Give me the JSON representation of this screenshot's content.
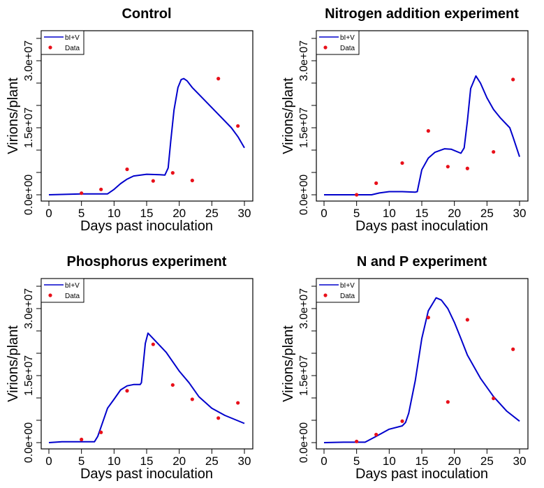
{
  "chart_data": [
    {
      "type": "line",
      "title": "Control",
      "xlabel": "Days past inoculation",
      "ylabel": "Virions/plant",
      "xlim": [
        0,
        30
      ],
      "ylim": [
        0,
        35000000
      ],
      "xticks": [
        0,
        5,
        10,
        15,
        20,
        25,
        30
      ],
      "yticks": [
        0,
        5000000,
        10000000,
        15000000,
        20000000,
        25000000,
        30000000,
        35000000
      ],
      "ytick_labels": [
        {
          "value": 0,
          "label": "0.0e+00"
        },
        {
          "value": 15000000,
          "label": "1.5e+07"
        },
        {
          "value": 30000000,
          "label": "3.0e+07"
        }
      ],
      "legend": {
        "position": "top-left",
        "entries": [
          "bI+V",
          "Data"
        ]
      },
      "series": [
        {
          "name": "bI+V",
          "kind": "line",
          "color": "#0000cc",
          "x": [
            0,
            5,
            9,
            10,
            11,
            12,
            13,
            15,
            17,
            17.8,
            18.3,
            18.7,
            19.2,
            19.8,
            20.3,
            20.7,
            21.2,
            22,
            24,
            26,
            28,
            29,
            30
          ],
          "y": [
            0,
            200000,
            200000,
            1200000,
            2500000,
            3500000,
            4200000,
            4600000,
            4500000,
            4400000,
            6000000,
            12000000,
            19000000,
            24000000,
            25800000,
            26000000,
            25500000,
            24000000,
            21000000,
            18000000,
            15000000,
            13000000,
            10500000
          ]
        },
        {
          "name": "Data",
          "kind": "points",
          "color": "#e8101a",
          "x": [
            5,
            8,
            12,
            16,
            19,
            22,
            26,
            29
          ],
          "y": [
            360000,
            1200000,
            5700000,
            3100000,
            4900000,
            3200000,
            26000000,
            15400000
          ]
        }
      ]
    },
    {
      "type": "line",
      "title": "Nitrogen addition experiment",
      "xlabel": "Days past inoculation",
      "ylabel": "Virions/plant",
      "xlim": [
        0,
        30
      ],
      "ylim": [
        0,
        35000000
      ],
      "xticks": [
        0,
        5,
        10,
        15,
        20,
        25,
        30
      ],
      "yticks": [
        0,
        5000000,
        10000000,
        15000000,
        20000000,
        25000000,
        30000000,
        35000000
      ],
      "ytick_labels": [
        {
          "value": 0,
          "label": "0.0e+00"
        },
        {
          "value": 15000000,
          "label": "1.5e+07"
        },
        {
          "value": 30000000,
          "label": "3.0e+07"
        }
      ],
      "legend": {
        "position": "top-left",
        "entries": [
          "bI+V",
          "Data"
        ]
      },
      "series": [
        {
          "name": "bI+V",
          "kind": "line",
          "color": "#0000cc",
          "x": [
            0,
            5,
            7.3,
            8.5,
            10,
            12,
            14,
            14.3,
            15,
            16,
            17,
            18.5,
            19.5,
            21,
            21.5,
            22,
            22.5,
            23.3,
            24,
            25,
            26,
            27,
            28.5,
            29,
            30
          ],
          "y": [
            0,
            0,
            0,
            400000,
            700000,
            700000,
            600000,
            700000,
            5600000,
            8200000,
            9500000,
            10300000,
            10200000,
            9300000,
            10500000,
            16500000,
            23800000,
            26600000,
            25000000,
            21700000,
            19100000,
            17300000,
            15000000,
            12900000,
            8500000
          ]
        },
        {
          "name": "Data",
          "kind": "points",
          "color": "#e8101a",
          "x": [
            5,
            8,
            12,
            16,
            19,
            22,
            26,
            29
          ],
          "y": [
            0,
            2600000,
            7100000,
            14300000,
            6300000,
            5900000,
            9600000,
            25800000
          ]
        }
      ]
    },
    {
      "type": "line",
      "title": "Phosphorus experiment",
      "xlabel": "Days past inoculation",
      "ylabel": "Virions/plant",
      "xlim": [
        0,
        30
      ],
      "ylim": [
        0,
        35000000
      ],
      "xticks": [
        0,
        5,
        10,
        15,
        20,
        25,
        30
      ],
      "yticks": [
        0,
        5000000,
        10000000,
        15000000,
        20000000,
        25000000,
        30000000,
        35000000
      ],
      "ytick_labels": [
        {
          "value": 0,
          "label": "0.0e+00"
        },
        {
          "value": 15000000,
          "label": "1.5e+07"
        },
        {
          "value": 30000000,
          "label": "3.0e+07"
        }
      ],
      "legend": {
        "position": "top-left",
        "entries": [
          "bI+V",
          "Data"
        ]
      },
      "series": [
        {
          "name": "bI+V",
          "kind": "line",
          "color": "#0000cc",
          "x": [
            0,
            2,
            7,
            7.5,
            8,
            9,
            10,
            11,
            12,
            13,
            14,
            14.2,
            14.8,
            15.2,
            16,
            18,
            20,
            21.5,
            23,
            25,
            27,
            30
          ],
          "y": [
            0,
            200000,
            200000,
            1400000,
            3500000,
            7700000,
            9700000,
            11800000,
            12700000,
            13000000,
            13000000,
            13400000,
            22200000,
            24500000,
            23300000,
            20200000,
            16000000,
            13400000,
            10300000,
            7700000,
            6100000,
            4300000
          ]
        },
        {
          "name": "Data",
          "kind": "points",
          "color": "#e8101a",
          "x": [
            5,
            8,
            12,
            16,
            19,
            22,
            26,
            29
          ],
          "y": [
            700000,
            2300000,
            11600000,
            22000000,
            12900000,
            9700000,
            5500000,
            8900000
          ]
        }
      ]
    },
    {
      "type": "line",
      "title": "N and P experiment",
      "xlabel": "Days past inoculation",
      "ylabel": "Virions/plant",
      "xlim": [
        0,
        30
      ],
      "ylim": [
        0,
        35000000
      ],
      "xticks": [
        0,
        5,
        10,
        15,
        20,
        25,
        30
      ],
      "yticks": [
        0,
        5000000,
        10000000,
        15000000,
        20000000,
        25000000,
        30000000,
        35000000
      ],
      "ytick_labels": [
        {
          "value": 0,
          "label": "0.0e+00"
        },
        {
          "value": 15000000,
          "label": "1.5e+07"
        },
        {
          "value": 30000000,
          "label": "3.0e+07"
        }
      ],
      "legend": {
        "position": "top-left",
        "entries": [
          "bI+V",
          "Data"
        ]
      },
      "series": [
        {
          "name": "bI+V",
          "kind": "line",
          "color": "#0000cc",
          "x": [
            0,
            3,
            6.3,
            8,
            10,
            12,
            12.5,
            13,
            14,
            15,
            16,
            17.2,
            18,
            19,
            20,
            21,
            22,
            24,
            26,
            28,
            30
          ],
          "y": [
            0,
            100000,
            100000,
            1400000,
            3000000,
            3750000,
            4500000,
            6600000,
            13900000,
            23300000,
            29500000,
            32400000,
            31900000,
            30000000,
            26900000,
            23300000,
            19600000,
            14400000,
            10300000,
            7100000,
            4800000
          ]
        },
        {
          "name": "Data",
          "kind": "points",
          "color": "#e8101a",
          "x": [
            5,
            8,
            12,
            16,
            19,
            22,
            26,
            29
          ],
          "y": [
            260000,
            1800000,
            4800000,
            28000000,
            9100000,
            27500000,
            9900000,
            20900000
          ]
        }
      ]
    }
  ]
}
